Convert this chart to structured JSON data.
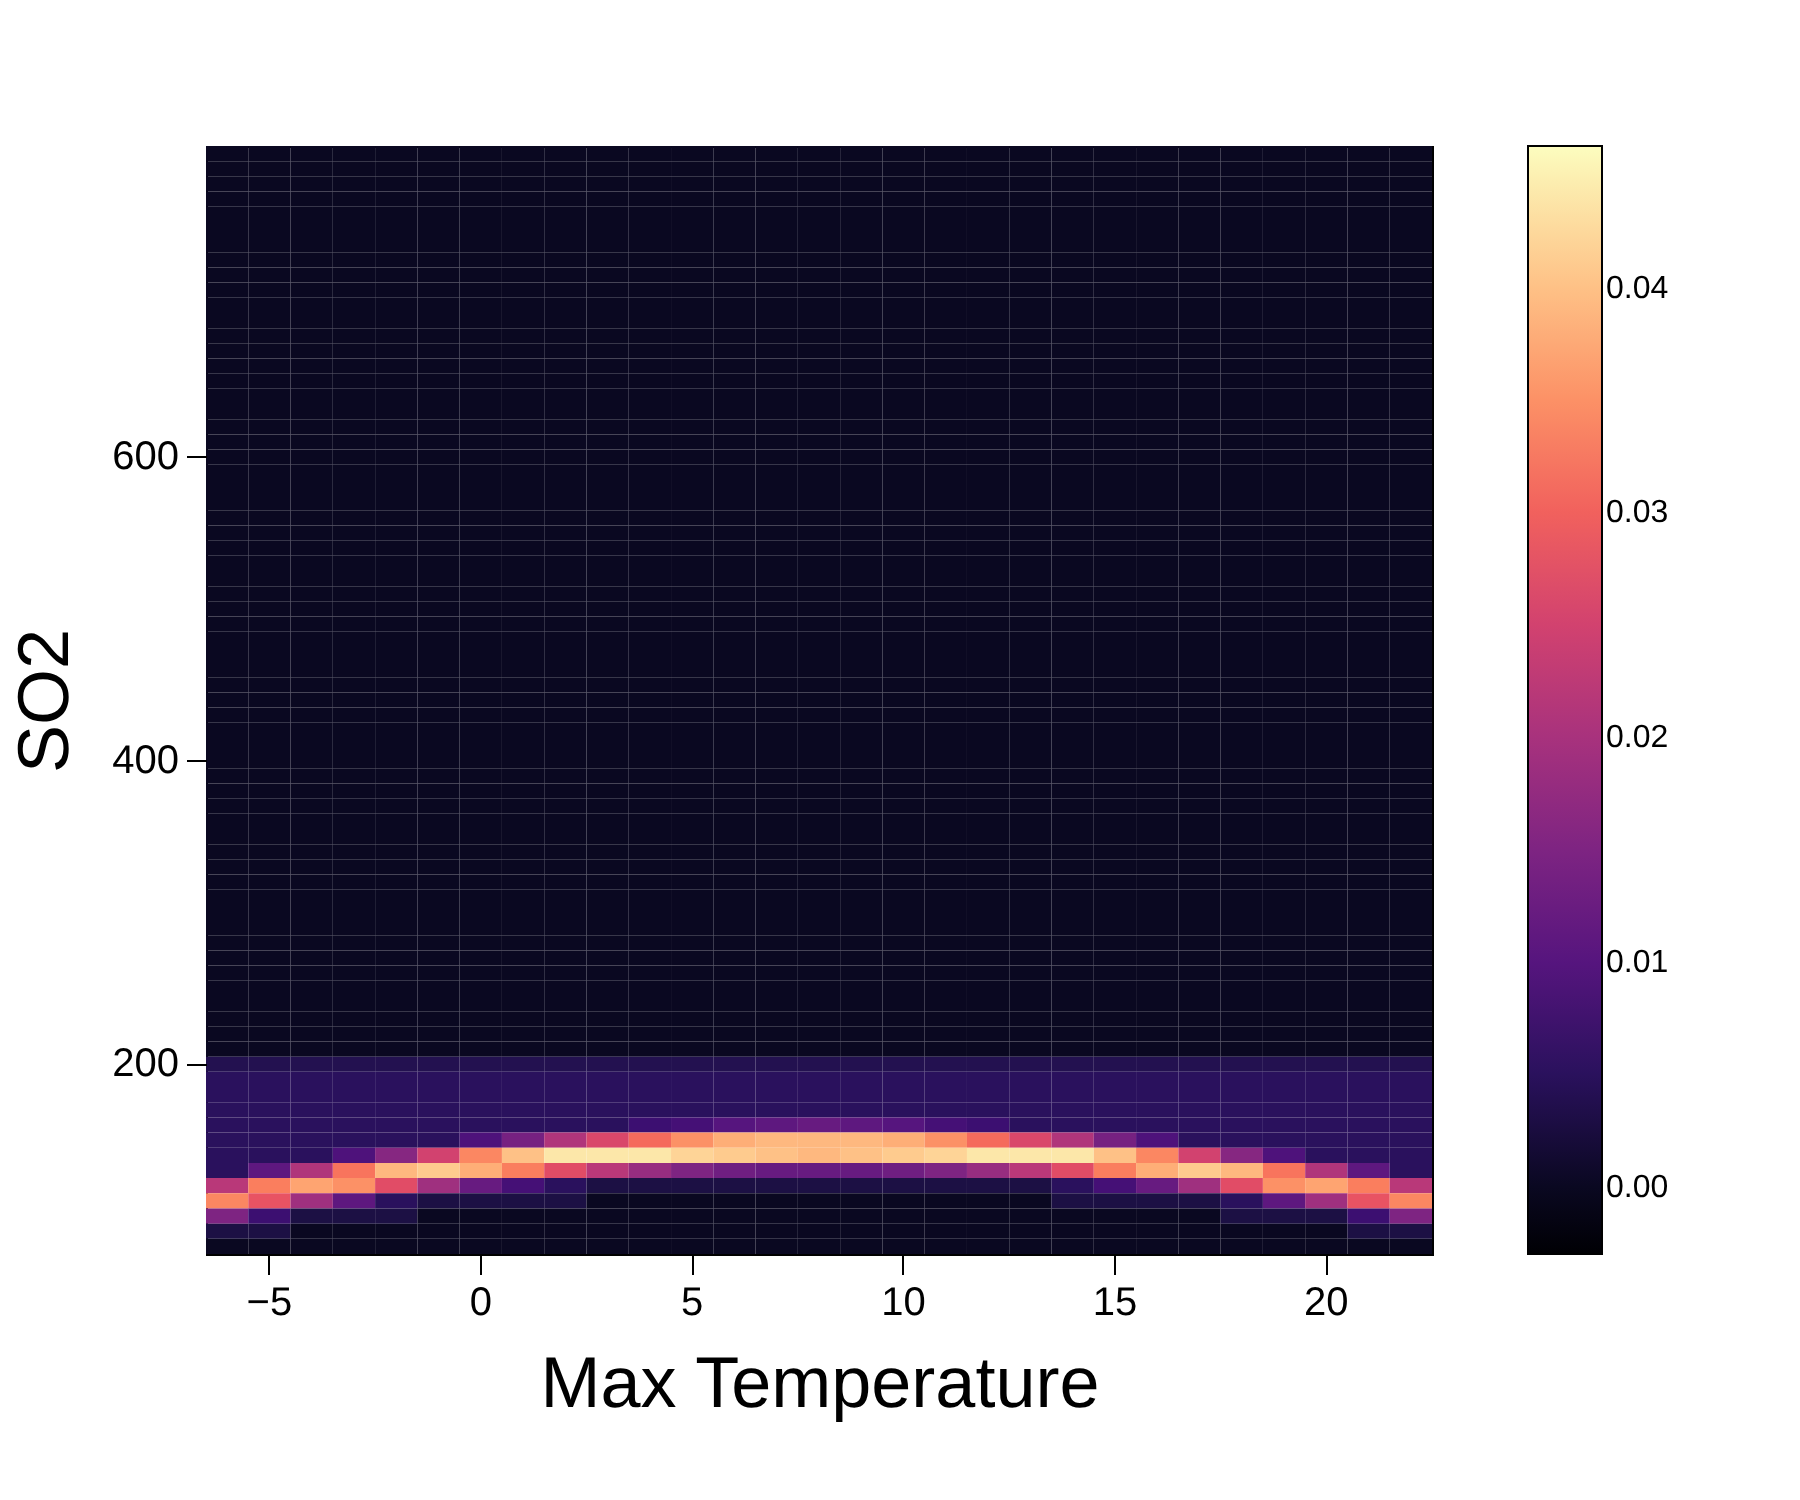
{
  "chart_data": {
    "type": "heatmap",
    "xlabel": "Max Temperature",
    "ylabel": "SO2",
    "categories": [
      null,
      "−5",
      null,
      null,
      null,
      null,
      "0",
      null,
      null,
      null,
      null,
      "5",
      null,
      null,
      null,
      null,
      "10",
      null,
      null,
      null,
      null,
      "15",
      null,
      null,
      null,
      null,
      "20",
      null,
      null
    ],
    "y_categories": [
      null,
      null,
      null,
      null,
      null,
      null,
      null,
      null,
      null,
      null,
      null,
      null,
      null,
      null,
      null,
      null,
      null,
      null,
      null,
      null,
      "600",
      null,
      null,
      null,
      null,
      null,
      null,
      null,
      null,
      null,
      null,
      null,
      null,
      null,
      null,
      null,
      null,
      null,
      null,
      null,
      "400",
      null,
      null,
      null,
      null,
      null,
      null,
      null,
      null,
      null,
      null,
      null,
      null,
      null,
      null,
      null,
      null,
      null,
      null,
      null,
      "200",
      null,
      null,
      null,
      null,
      null,
      null,
      null,
      null,
      null,
      null,
      null,
      null
    ],
    "cells": [
      [
        0,
        0,
        0,
        0,
        0,
        0,
        0,
        0,
        0,
        0,
        0,
        0,
        0,
        0,
        0,
        0,
        0,
        0,
        0,
        0,
        0,
        0,
        0,
        0,
        0,
        0,
        0,
        0,
        0
      ],
      [
        0,
        0,
        0,
        0,
        0,
        0,
        0,
        0,
        0,
        0,
        0,
        0,
        0,
        0,
        0,
        0,
        0,
        0,
        0,
        0,
        0,
        0,
        0,
        0,
        0,
        0,
        0,
        0,
        0
      ],
      [
        0,
        0,
        0,
        0,
        0,
        0,
        0,
        0,
        0,
        0,
        0,
        0,
        0,
        0,
        0,
        0,
        0,
        0,
        0,
        0,
        0,
        0,
        0,
        0,
        0,
        0,
        0,
        0,
        0
      ],
      [
        0,
        0,
        0,
        0,
        0,
        0,
        0,
        0,
        0,
        0,
        0,
        0,
        0,
        0,
        0,
        0,
        0,
        0,
        0,
        0,
        0,
        0,
        0,
        0,
        0,
        0,
        0,
        0,
        0
      ],
      [
        0,
        0,
        0,
        0,
        0,
        0,
        0,
        0,
        0,
        0,
        0,
        0,
        0,
        0,
        0,
        0,
        0,
        0,
        0,
        0,
        0,
        0,
        0,
        0,
        0,
        0,
        0,
        0,
        0
      ],
      [
        0,
        0,
        0,
        0,
        0,
        0,
        0,
        0,
        0,
        0,
        0,
        0,
        0,
        0,
        0,
        0,
        0,
        0,
        0,
        0,
        0,
        0,
        0,
        0,
        0,
        0,
        0,
        0,
        0
      ],
      [
        0,
        0,
        0,
        0,
        0,
        0,
        0,
        0,
        0,
        0,
        0,
        0,
        0,
        0,
        0,
        0,
        0,
        0,
        0,
        0,
        0,
        0,
        0,
        0,
        0,
        0,
        0,
        0,
        0
      ],
      [
        0,
        0,
        0,
        0,
        0,
        0,
        0,
        0,
        0,
        0,
        0,
        0,
        0,
        0,
        0,
        0,
        0,
        0,
        0,
        0,
        0,
        0,
        0,
        0,
        0,
        0,
        0,
        0,
        0
      ],
      [
        0,
        0,
        0,
        0,
        0,
        0,
        0,
        0,
        0,
        0,
        0,
        0,
        0,
        0,
        0,
        0,
        0,
        0,
        0,
        0,
        0,
        0,
        0,
        0,
        0,
        0,
        0,
        0,
        0
      ],
      [
        0,
        0,
        0,
        0,
        0,
        0,
        0,
        0,
        0,
        0,
        0,
        0,
        0,
        0,
        0,
        0,
        0,
        0,
        0,
        0,
        0,
        0,
        0,
        0,
        0,
        0,
        0,
        0,
        0
      ],
      [
        0,
        0,
        0,
        0,
        0,
        0,
        0,
        0,
        0,
        0,
        0,
        0,
        0,
        0,
        0,
        0,
        0,
        0,
        0,
        0,
        0,
        0,
        0,
        0,
        0,
        0,
        0,
        0,
        0
      ],
      [
        0,
        0,
        0,
        0,
        0,
        0,
        0,
        0,
        0,
        0,
        0,
        0,
        0,
        0,
        0,
        0,
        0,
        0,
        0,
        0,
        0,
        0,
        0,
        0,
        0,
        0,
        0,
        0,
        0
      ],
      [
        0,
        0,
        0,
        0,
        0,
        0,
        0,
        0,
        0,
        0,
        0,
        0,
        0,
        0,
        0,
        0,
        0,
        0,
        0,
        0,
        0,
        0,
        0,
        0,
        0,
        0,
        0,
        0,
        0
      ],
      [
        0,
        0,
        0,
        0,
        0,
        0,
        0,
        0,
        0,
        0,
        0,
        0,
        0,
        0,
        0,
        0,
        0,
        0,
        0,
        0,
        0,
        0,
        0,
        0,
        0,
        0,
        0,
        0,
        0
      ],
      [
        0,
        0,
        0,
        0,
        0,
        0,
        0,
        0,
        0,
        0,
        0,
        0,
        0,
        0,
        0,
        0,
        0,
        0,
        0,
        0,
        0,
        0,
        0,
        0,
        0,
        0,
        0,
        0,
        0
      ],
      [
        0,
        0,
        0,
        0,
        0,
        0,
        0,
        0,
        0,
        0,
        0,
        0,
        0,
        0,
        0,
        0,
        0,
        0,
        0,
        0,
        0,
        0,
        0,
        0,
        0,
        0,
        0,
        0,
        0
      ],
      [
        0,
        0,
        0,
        0,
        0,
        0,
        0,
        0,
        0,
        0,
        0,
        0,
        0,
        0,
        0,
        0,
        0,
        0,
        0,
        0,
        0,
        0,
        0,
        0,
        0,
        0,
        0,
        0,
        0
      ],
      [
        0,
        0,
        0,
        0,
        0,
        0,
        0,
        0,
        0,
        0,
        0,
        0,
        0,
        0,
        0,
        0,
        0,
        0,
        0,
        0,
        0,
        0,
        0,
        0,
        0,
        0,
        0,
        0,
        0
      ],
      [
        0,
        0,
        0,
        0,
        0,
        0,
        0,
        0,
        0,
        0,
        0,
        0,
        0,
        0,
        0,
        0,
        0,
        0,
        0,
        0,
        0,
        0,
        0,
        0,
        0,
        0,
        0,
        0,
        0
      ],
      [
        0,
        0,
        0,
        0,
        0,
        0,
        0,
        0,
        0,
        0,
        0,
        0,
        0,
        0,
        0,
        0,
        0,
        0,
        0,
        0,
        0,
        0,
        0,
        0,
        0,
        0,
        0,
        0,
        0
      ],
      [
        0,
        0,
        0,
        0,
        0,
        0,
        0,
        0,
        0,
        0,
        0,
        0,
        0,
        0,
        0,
        0,
        0,
        0,
        0,
        0,
        0,
        0,
        0,
        0,
        0,
        0,
        0,
        0,
        0
      ],
      [
        0,
        0,
        0,
        0,
        0,
        0,
        0,
        0,
        0,
        0,
        0,
        0,
        0,
        0,
        0,
        0,
        0,
        0,
        0,
        0,
        0,
        0,
        0,
        0,
        0,
        0,
        0,
        0,
        0
      ],
      [
        0,
        0,
        0,
        0,
        0,
        0,
        0,
        0,
        0,
        0,
        0,
        0,
        0,
        0,
        0,
        0,
        0,
        0,
        0,
        0,
        0,
        0,
        0,
        0,
        0,
        0,
        0,
        0,
        0
      ],
      [
        0,
        0,
        0,
        0,
        0,
        0,
        0,
        0,
        0,
        0,
        0,
        0,
        0,
        0,
        0,
        0,
        0,
        0,
        0,
        0,
        0,
        0,
        0,
        0,
        0,
        0,
        0,
        0,
        0
      ],
      [
        0,
        0,
        0,
        0,
        0,
        0,
        0,
        0,
        0,
        0,
        0,
        0,
        0,
        0,
        0,
        0,
        0,
        0,
        0,
        0,
        0,
        0,
        0,
        0,
        0,
        0,
        0,
        0,
        0
      ],
      [
        0,
        0,
        0,
        0,
        0,
        0,
        0,
        0,
        0,
        0,
        0,
        0,
        0,
        0,
        0,
        0,
        0,
        0,
        0,
        0,
        0,
        0,
        0,
        0,
        0,
        0,
        0,
        0,
        0
      ],
      [
        0,
        0,
        0,
        0,
        0,
        0,
        0,
        0,
        0,
        0,
        0,
        0,
        0,
        0,
        0,
        0,
        0,
        0,
        0,
        0,
        0,
        0,
        0,
        0,
        0,
        0,
        0,
        0,
        0
      ],
      [
        0,
        0,
        0,
        0,
        0,
        0,
        0,
        0,
        0,
        0,
        0,
        0,
        0,
        0,
        0,
        0,
        0,
        0,
        0,
        0,
        0,
        0,
        0,
        0,
        0,
        0,
        0,
        0,
        0
      ],
      [
        0,
        0,
        0,
        0,
        0,
        0,
        0,
        0,
        0,
        0,
        0,
        0,
        0,
        0,
        0,
        0,
        0,
        0,
        0,
        0,
        0,
        0,
        0,
        0,
        0,
        0,
        0,
        0,
        0
      ],
      [
        0,
        0,
        0,
        0,
        0,
        0,
        0,
        0,
        0,
        0,
        0,
        0,
        0,
        0,
        0,
        0,
        0,
        0,
        0,
        0,
        0,
        0,
        0,
        0,
        0,
        0,
        0,
        0,
        0
      ],
      [
        0,
        0,
        0,
        0,
        0,
        0,
        0,
        0,
        0,
        0,
        0,
        0,
        0,
        0,
        0,
        0,
        0,
        0,
        0,
        0,
        0,
        0,
        0,
        0,
        0,
        0,
        0,
        0,
        0
      ],
      [
        0,
        0,
        0,
        0,
        0,
        0,
        0,
        0,
        0,
        0,
        0,
        0,
        0,
        0,
        0,
        0,
        0,
        0,
        0,
        0,
        0,
        0,
        0,
        0,
        0,
        0,
        0,
        0,
        0
      ],
      [
        0,
        0,
        0,
        0,
        0,
        0,
        0,
        0,
        0,
        0,
        0,
        0,
        0,
        0,
        0,
        0,
        0,
        0,
        0,
        0,
        0,
        0,
        0,
        0,
        0,
        0,
        0,
        0,
        0
      ],
      [
        0,
        0,
        0,
        0,
        0,
        0,
        0,
        0,
        0,
        0,
        0,
        0,
        0,
        0,
        0,
        0,
        0,
        0,
        0,
        0,
        0,
        0,
        0,
        0,
        0,
        0,
        0,
        0,
        0
      ],
      [
        0,
        0,
        0,
        0,
        0,
        0,
        0,
        0,
        0,
        0,
        0,
        0,
        0,
        0,
        0,
        0,
        0,
        0,
        0,
        0,
        0,
        0,
        0,
        0,
        0,
        0,
        0,
        0,
        0
      ],
      [
        0,
        0,
        0,
        0,
        0,
        0,
        0,
        0,
        0,
        0,
        0,
        0,
        0,
        0,
        0,
        0,
        0,
        0,
        0,
        0,
        0,
        0,
        0,
        0,
        0,
        0,
        0,
        0,
        0
      ],
      [
        0,
        0,
        0,
        0,
        0,
        0,
        0,
        0,
        0,
        0,
        0,
        0,
        0,
        0,
        0,
        0,
        0,
        0,
        0,
        0,
        0,
        0,
        0,
        0,
        0,
        0,
        0,
        0,
        0
      ],
      [
        0,
        0,
        0,
        0,
        0,
        0,
        0,
        0,
        0,
        0,
        0,
        0,
        0,
        0,
        0,
        0,
        0,
        0,
        0,
        0,
        0,
        0,
        0,
        0,
        0,
        0,
        0,
        0,
        0
      ],
      [
        0,
        0,
        0,
        0,
        0,
        0,
        0,
        0,
        0,
        0,
        0,
        0,
        0,
        0,
        0,
        0,
        0,
        0,
        0,
        0,
        0,
        0,
        0,
        0,
        0,
        0,
        0,
        0,
        0
      ],
      [
        0,
        0,
        0,
        0,
        0,
        0,
        0,
        0,
        0,
        0,
        0,
        0,
        0,
        0,
        0,
        0,
        0,
        0,
        0,
        0,
        0,
        0,
        0,
        0,
        0,
        0,
        0,
        0,
        0
      ],
      [
        0,
        0,
        0,
        0,
        0,
        0,
        0,
        0,
        0,
        0,
        0,
        0,
        0,
        0,
        0,
        0,
        0,
        0,
        0,
        0,
        0,
        0,
        0,
        0,
        0,
        0,
        0,
        0,
        0
      ],
      [
        0,
        0,
        0,
        0,
        0,
        0,
        0,
        0,
        0,
        0,
        0,
        0,
        0,
        0,
        0,
        0,
        0,
        0,
        0,
        0,
        0,
        0,
        0,
        0,
        0,
        0,
        0,
        0,
        0
      ],
      [
        0,
        0,
        0,
        0,
        0,
        0,
        0,
        0,
        0,
        0,
        0,
        0,
        0,
        0,
        0,
        0,
        0,
        0,
        0,
        0,
        0,
        0,
        0,
        0,
        0,
        0,
        0,
        0,
        0
      ],
      [
        0,
        0,
        0,
        0,
        0,
        0,
        0,
        0,
        0,
        0,
        0,
        0,
        0,
        0,
        0,
        0,
        0,
        0,
        0,
        0,
        0,
        0,
        0,
        0,
        0,
        0,
        0,
        0,
        0
      ],
      [
        0,
        0,
        0,
        0,
        0,
        0,
        0,
        0,
        0,
        0,
        0,
        0,
        0,
        0,
        0,
        0,
        0,
        0,
        0,
        0,
        0,
        0,
        0,
        0,
        0,
        0,
        0,
        0,
        0
      ],
      [
        0,
        0,
        0,
        0,
        0,
        0,
        0,
        0,
        0,
        0,
        0,
        0,
        0,
        0,
        0,
        0,
        0,
        0,
        0,
        0,
        0,
        0,
        0,
        0,
        0,
        0,
        0,
        0,
        0
      ],
      [
        0,
        0,
        0,
        0,
        0,
        0,
        0,
        0,
        0,
        0,
        0,
        0,
        0,
        0,
        0,
        0,
        0,
        0,
        0,
        0,
        0,
        0,
        0,
        0,
        0,
        0,
        0,
        0,
        0
      ],
      [
        0,
        0,
        0,
        0,
        0,
        0,
        0,
        0,
        0,
        0,
        0,
        0,
        0,
        0,
        0,
        0,
        0,
        0,
        0,
        0,
        0,
        0,
        0,
        0,
        0,
        0,
        0,
        0,
        0
      ],
      [
        0,
        0,
        0,
        0,
        0,
        0,
        0,
        0,
        0,
        0,
        0,
        0,
        0,
        0,
        0,
        0,
        0,
        0,
        0,
        0,
        0,
        0,
        0,
        0,
        0,
        0,
        0,
        0,
        0
      ],
      [
        0,
        0,
        0,
        0,
        0,
        0,
        0,
        0,
        0,
        0,
        0,
        0,
        0,
        0,
        0,
        0,
        0,
        0,
        0,
        0,
        0,
        0,
        0,
        0,
        0,
        0,
        0,
        0,
        0
      ],
      [
        0,
        0,
        0,
        0,
        0,
        0,
        0,
        0,
        0,
        0,
        0,
        0,
        0,
        0,
        0,
        0,
        0,
        0,
        0,
        0,
        0,
        0,
        0,
        0,
        0,
        0,
        0,
        0,
        0
      ],
      [
        0,
        0,
        0,
        0,
        0,
        0,
        0,
        0,
        0,
        0,
        0,
        0,
        0,
        0,
        0,
        0,
        0,
        0,
        0,
        0,
        0,
        0,
        0,
        0,
        0,
        0,
        0,
        0,
        0
      ],
      [
        0,
        0,
        0,
        0,
        0,
        0,
        0,
        0,
        0,
        0,
        0,
        0,
        0,
        0,
        0,
        0,
        0,
        0,
        0,
        0,
        0,
        0,
        0,
        0,
        0,
        0,
        0,
        0,
        0
      ],
      [
        0,
        0,
        0,
        0,
        0,
        0,
        0,
        0,
        0,
        0,
        0,
        0,
        0,
        0,
        0,
        0,
        0,
        0,
        0,
        0,
        0,
        0,
        0,
        0,
        0,
        0,
        0,
        0,
        0
      ],
      [
        0,
        0,
        0,
        0,
        0,
        0,
        0,
        0,
        0,
        0,
        0,
        0,
        0,
        0,
        0,
        0,
        0,
        0,
        0,
        0,
        0,
        0,
        0,
        0,
        0,
        0,
        0,
        0,
        0
      ],
      [
        0,
        0,
        0,
        0,
        0,
        0,
        0,
        0,
        0,
        0,
        0,
        0,
        0,
        0,
        0,
        0,
        0,
        0,
        0,
        0,
        0,
        0,
        0,
        0,
        0,
        0,
        0,
        0,
        0
      ],
      [
        0,
        0,
        0,
        0,
        0,
        0,
        0,
        0,
        0,
        0,
        0,
        0,
        0,
        0,
        0,
        0,
        0,
        0,
        0,
        0,
        0,
        0,
        0,
        0,
        0,
        0,
        0,
        0,
        0
      ],
      [
        0,
        0,
        0,
        0,
        0,
        0,
        0,
        0,
        0,
        0,
        0,
        0,
        0,
        0,
        0,
        0,
        0,
        0,
        0,
        0,
        0,
        0,
        0,
        0,
        0,
        0,
        0,
        0,
        0
      ],
      [
        0,
        0,
        0,
        0,
        0,
        0,
        0,
        0,
        0,
        0,
        0,
        0,
        0,
        0,
        0,
        0,
        0,
        0,
        0,
        0,
        0,
        0,
        0,
        0,
        0,
        0,
        0,
        0,
        0
      ],
      [
        0,
        0,
        0,
        0,
        0,
        0,
        0,
        0,
        0,
        0,
        0,
        0,
        0,
        0,
        0,
        0,
        0,
        0,
        0,
        0,
        0,
        0,
        0,
        0,
        0,
        0,
        0,
        0,
        0
      ],
      [
        0.004,
        0.004,
        0.004,
        0.004,
        0.004,
        0.004,
        0.004,
        0.004,
        0.004,
        0.004,
        0.004,
        0.004,
        0.004,
        0.004,
        0.004,
        0.004,
        0.004,
        0.004,
        0.004,
        0.004,
        0.004,
        0.004,
        0.004,
        0.004,
        0.004,
        0.004,
        0.004,
        0.004,
        0.004
      ],
      [
        0.005,
        0.005,
        0.005,
        0.005,
        0.005,
        0.005,
        0.005,
        0.005,
        0.005,
        0.005,
        0.005,
        0.005,
        0.005,
        0.005,
        0.005,
        0.005,
        0.005,
        0.005,
        0.005,
        0.005,
        0.005,
        0.005,
        0.005,
        0.005,
        0.005,
        0.005,
        0.005,
        0.005,
        0.005
      ],
      [
        0.005,
        0.005,
        0.005,
        0.005,
        0.005,
        0.005,
        0.005,
        0.005,
        0.005,
        0.005,
        0.005,
        0.005,
        0.005,
        0.005,
        0.005,
        0.005,
        0.005,
        0.005,
        0.005,
        0.005,
        0.005,
        0.005,
        0.005,
        0.005,
        0.005,
        0.005,
        0.005,
        0.005,
        0.005
      ],
      [
        0.005,
        0.005,
        0.005,
        0.005,
        0.005,
        0.005,
        0.005,
        0.005,
        0.005,
        0.005,
        0.005,
        0.005,
        0.005,
        0.005,
        0.005,
        0.005,
        0.005,
        0.005,
        0.005,
        0.005,
        0.005,
        0.005,
        0.005,
        0.005,
        0.005,
        0.005,
        0.005,
        0.005,
        0.005
      ],
      [
        0.005,
        0.005,
        0.005,
        0.005,
        0.005,
        0.005,
        0.005,
        0.005,
        0.005,
        0.005,
        0.007,
        0.008,
        0.01,
        0.011,
        0.012,
        0.011,
        0.01,
        0.008,
        0.007,
        0.005,
        0.005,
        0.005,
        0.005,
        0.005,
        0.005,
        0.005,
        0.005,
        0.005,
        0.005
      ],
      [
        0.005,
        0.005,
        0.005,
        0.005,
        0.005,
        0.005,
        0.009,
        0.014,
        0.021,
        0.026,
        0.031,
        0.035,
        0.038,
        0.039,
        0.039,
        0.039,
        0.038,
        0.035,
        0.031,
        0.026,
        0.021,
        0.014,
        0.009,
        0.005,
        0.005,
        0.005,
        0.005,
        0.005,
        0.005
      ],
      [
        0.005,
        0.005,
        0.005,
        0.009,
        0.016,
        0.025,
        0.034,
        0.04,
        0.044,
        0.044,
        0.044,
        0.042,
        0.041,
        0.04,
        0.039,
        0.04,
        0.041,
        0.042,
        0.044,
        0.044,
        0.044,
        0.04,
        0.034,
        0.025,
        0.016,
        0.009,
        0.005,
        0.005,
        0.005
      ],
      [
        0.005,
        0.011,
        0.021,
        0.032,
        0.039,
        0.041,
        0.038,
        0.033,
        0.027,
        0.022,
        0.018,
        0.015,
        0.013,
        0.012,
        0.012,
        0.012,
        0.013,
        0.015,
        0.018,
        0.022,
        0.027,
        0.033,
        0.038,
        0.041,
        0.039,
        0.032,
        0.021,
        0.011,
        0.005
      ],
      [
        0.022,
        0.033,
        0.037,
        0.035,
        0.027,
        0.019,
        0.012,
        0.008,
        0.005,
        0.003,
        0.003,
        0.003,
        0.003,
        0.003,
        0.003,
        0.003,
        0.003,
        0.003,
        0.003,
        0.003,
        0.005,
        0.008,
        0.012,
        0.019,
        0.027,
        0.035,
        0.037,
        0.033,
        0.022
      ],
      [
        0.034,
        0.028,
        0.019,
        0.011,
        0.005,
        0.003,
        0.003,
        0.003,
        0.003,
        0,
        0,
        0,
        0,
        0,
        0,
        0,
        0,
        0,
        0,
        0,
        0.003,
        0.003,
        0.003,
        0.003,
        0.005,
        0.011,
        0.019,
        0.028,
        0.034
      ],
      [
        0.015,
        0.007,
        0.003,
        0.003,
        0.003,
        0,
        0,
        0,
        0,
        0,
        0,
        0,
        0,
        0,
        0,
        0,
        0,
        0,
        0,
        0,
        0,
        0,
        0,
        0,
        0.003,
        0.003,
        0.003,
        0.007,
        0.015
      ],
      [
        0.003,
        0.003,
        0,
        0,
        0,
        0,
        0,
        0,
        0,
        0,
        0,
        0,
        0,
        0,
        0,
        0,
        0,
        0,
        0,
        0,
        0,
        0,
        0,
        0,
        0,
        0,
        0,
        0.003,
        0.003
      ],
      [
        0,
        0,
        0,
        0,
        0,
        0,
        0,
        0,
        0,
        0,
        0,
        0,
        0,
        0,
        0,
        0,
        0,
        0,
        0,
        0,
        0,
        0,
        0,
        0,
        0,
        0,
        0,
        0,
        0
      ]
    ],
    "clim": [
      -0.003,
      0.0463
    ],
    "cticks": [
      {
        "value": 0,
        "label": "0.00"
      },
      {
        "value": 0.01,
        "label": "0.01"
      },
      {
        "value": 0.02,
        "label": "0.02"
      },
      {
        "value": 0.03,
        "label": "0.03"
      },
      {
        "value": 0.04,
        "label": "0.04"
      }
    ]
  }
}
